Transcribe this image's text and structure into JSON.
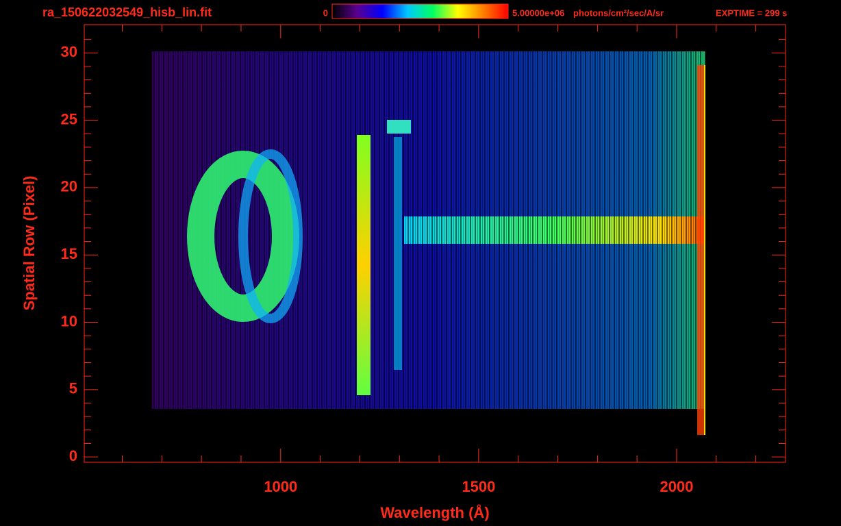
{
  "chart_data": {
    "type": "image",
    "title": "ra_150622032549_hisb_lin.fit",
    "x_label": "Wavelength (Å)",
    "y_label": "Spatial Row (Pixel)",
    "exposure": "EXPTIME = 299 s",
    "colorbar": {
      "min": 0,
      "max": {
        "value": 5000000,
        "label": "5.00000e+06"
      },
      "units": "photons/cm²/sec/A/sr",
      "colors": [
        "#000000",
        "#5a0090",
        "#0000ff",
        "#00c8ff",
        "#00ff60",
        "#ffff00",
        "#ff8000",
        "#ff0000"
      ]
    },
    "xlim": [
      504,
      2275
    ],
    "xticks": [
      1000,
      1500,
      2000
    ],
    "xminor": [
      600,
      700,
      800,
      900,
      1100,
      1200,
      1300,
      1400,
      1600,
      1700,
      1800,
      1900,
      2100,
      2200
    ],
    "ylim": [
      -0.4,
      32.1
    ],
    "yticks": [
      0,
      5,
      10,
      15,
      20,
      25,
      30
    ],
    "yminor": [
      1,
      2,
      3,
      4,
      6,
      7,
      8,
      9,
      11,
      12,
      13,
      14,
      16,
      17,
      18,
      19,
      21,
      22,
      23,
      24,
      26,
      27,
      28,
      29,
      31
    ],
    "axis_color": "#ff2a1a"
  }
}
